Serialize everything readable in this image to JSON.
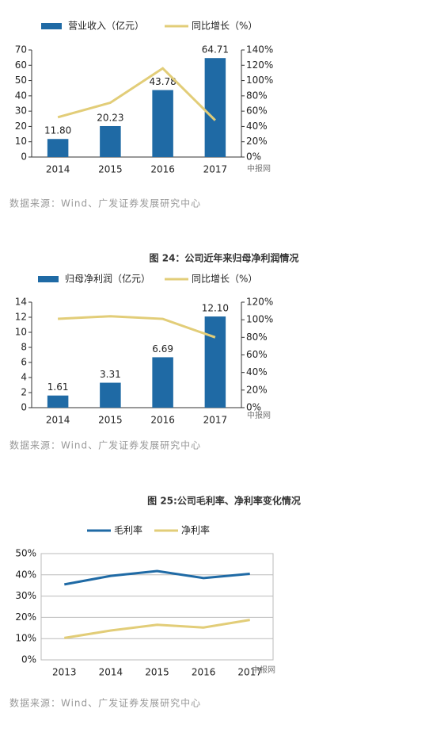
{
  "chart_data": [
    {
      "type": "bar",
      "categories": [
        "2014",
        "2015",
        "2016",
        "2017"
      ],
      "series": [
        {
          "name": "营业收入（亿元）",
          "color": "#1f6aa5",
          "type": "bar",
          "values": [
            11.8,
            20.23,
            43.78,
            64.71
          ],
          "value_labels": [
            "11.80",
            "20.23",
            "43.78",
            "64.71"
          ]
        },
        {
          "name": "同比增长（%）",
          "color": "#e2cd78",
          "type": "line",
          "axis": "y2",
          "values": [
            52,
            71,
            116,
            48
          ]
        }
      ],
      "ylim": [
        0,
        70
      ],
      "yticks": [
        0,
        10,
        20,
        30,
        40,
        50,
        60,
        70
      ],
      "y2lim": [
        0,
        140
      ],
      "y2ticks": [
        {
          "value": 0,
          "label": "0%"
        },
        {
          "value": 20,
          "label": "20%"
        },
        {
          "value": 40,
          "label": "40%"
        },
        {
          "value": 60,
          "label": "60%"
        },
        {
          "value": 80,
          "label": "80%"
        },
        {
          "value": 100,
          "label": "100%"
        },
        {
          "value": 120,
          "label": "120%"
        },
        {
          "value": 140,
          "label": "140%"
        }
      ],
      "grid": false,
      "watermark": "中报网",
      "source": "数据来源：Wind、广发证券发展研究中心"
    },
    {
      "type": "bar",
      "title": "图 24：公司近年来归母净利润情况",
      "categories": [
        "2014",
        "2015",
        "2016",
        "2017"
      ],
      "series": [
        {
          "name": "归母净利润（亿元）",
          "color": "#1f6aa5",
          "type": "bar",
          "values": [
            1.61,
            3.31,
            6.69,
            12.1
          ],
          "value_labels": [
            "1.61",
            "3.31",
            "6.69",
            "12.10"
          ]
        },
        {
          "name": "同比增长（%）",
          "color": "#e2cd78",
          "type": "line",
          "axis": "y2",
          "values": [
            101,
            104,
            101,
            80
          ]
        }
      ],
      "ylim": [
        0,
        14
      ],
      "yticks": [
        0,
        2,
        4,
        6,
        8,
        10,
        12,
        14
      ],
      "y2lim": [
        0,
        120
      ],
      "y2ticks": [
        {
          "value": 0,
          "label": "0%"
        },
        {
          "value": 20,
          "label": "20%"
        },
        {
          "value": 40,
          "label": "40%"
        },
        {
          "value": 60,
          "label": "60%"
        },
        {
          "value": 80,
          "label": "80%"
        },
        {
          "value": 100,
          "label": "100%"
        },
        {
          "value": 120,
          "label": "120%"
        }
      ],
      "grid": false,
      "watermark": "中报网",
      "source": "数据来源：Wind、广发证券发展研究中心"
    },
    {
      "type": "line",
      "title": "图 25:公司毛利率、净利率变化情况",
      "categories": [
        "2013",
        "2014",
        "2015",
        "2016",
        "2017"
      ],
      "series": [
        {
          "name": "毛利率",
          "color": "#1f6aa5",
          "type": "line",
          "values": [
            35.5,
            39.5,
            41.8,
            38.5,
            40.5
          ]
        },
        {
          "name": "净利率",
          "color": "#e2cd78",
          "type": "line",
          "values": [
            10.3,
            13.8,
            16.5,
            15.2,
            18.8
          ]
        }
      ],
      "ylim": [
        0,
        50
      ],
      "yticks": [
        {
          "value": 0,
          "label": "0%"
        },
        {
          "value": 10,
          "label": "10%"
        },
        {
          "value": 20,
          "label": "20%"
        },
        {
          "value": 30,
          "label": "30%"
        },
        {
          "value": 40,
          "label": "40%"
        },
        {
          "value": 50,
          "label": "50%"
        }
      ],
      "grid": true,
      "watermark": "中报网",
      "source": "数据来源：Wind、广发证券发展研究中心"
    }
  ]
}
